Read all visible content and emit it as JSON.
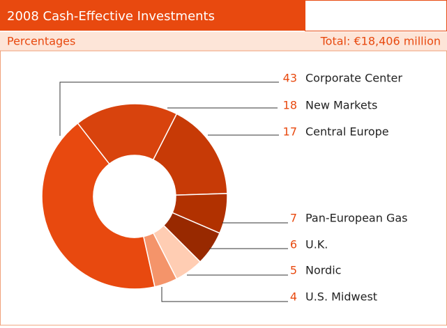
{
  "chart_data": {
    "type": "donut",
    "title": "2008 Cash-Effective Investments",
    "subtitle": "Percentages",
    "annotation": "Total: €18,406 million",
    "categories": [
      "Corporate Center",
      "New Markets",
      "Central Europe",
      "Pan-European Gas",
      "U.K.",
      "Nordic",
      "U.S. Midwest"
    ],
    "values": [
      43,
      18,
      17,
      7,
      6,
      5,
      4
    ],
    "colors": [
      "#e8490f",
      "#d8430d",
      "#c73a06",
      "#b13100",
      "#982900",
      "#ffcdb3",
      "#f4946a"
    ]
  }
}
